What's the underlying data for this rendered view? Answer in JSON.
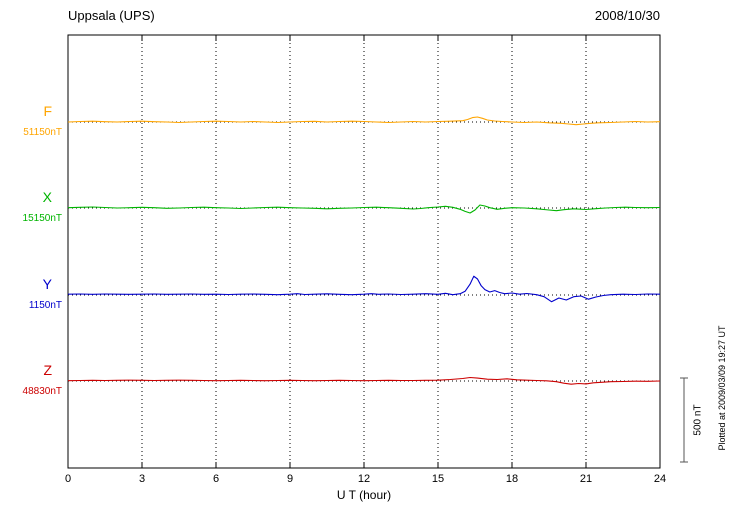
{
  "chart_data": {
    "type": "line",
    "station": "Uppsala (UPS)",
    "date": "2008/10/30",
    "xlabel": "U T (hour)",
    "x_range": [
      0,
      24
    ],
    "x_ticks": [
      0,
      3,
      6,
      9,
      12,
      15,
      18,
      21,
      24
    ],
    "y_unit": "nT",
    "grid": "dotted vertical every 3 hours, dotted horizontal baseline per trace",
    "scale_bar": {
      "label": "500 nT",
      "nT": 500
    },
    "plotted_note": "Plotted at 2009/03/09 19:27 UT",
    "series": [
      {
        "name": "F",
        "baseline_label": "51150nT",
        "baseline_nT": 51150,
        "color": "#ffa500",
        "points": [
          [
            0,
            0
          ],
          [
            0.5,
            3
          ],
          [
            1,
            5
          ],
          [
            1.5,
            2
          ],
          [
            2,
            0
          ],
          [
            2.5,
            3
          ],
          [
            3,
            5
          ],
          [
            3.5,
            2
          ],
          [
            4,
            0
          ],
          [
            4.5,
            -3
          ],
          [
            5,
            0
          ],
          [
            5.5,
            3
          ],
          [
            6,
            5
          ],
          [
            6.5,
            3
          ],
          [
            7,
            0
          ],
          [
            7.5,
            3
          ],
          [
            8,
            0
          ],
          [
            8.5,
            -3
          ],
          [
            9,
            0
          ],
          [
            9.5,
            3
          ],
          [
            10,
            4
          ],
          [
            10.5,
            0
          ],
          [
            11,
            3
          ],
          [
            11.5,
            5
          ],
          [
            12,
            3
          ],
          [
            12.5,
            0
          ],
          [
            13,
            -3
          ],
          [
            13.5,
            0
          ],
          [
            14,
            3
          ],
          [
            14.5,
            0
          ],
          [
            15,
            3
          ],
          [
            15.5,
            5
          ],
          [
            16,
            8
          ],
          [
            16.2,
            15
          ],
          [
            16.4,
            26
          ],
          [
            16.6,
            30
          ],
          [
            16.8,
            22
          ],
          [
            17,
            12
          ],
          [
            17.3,
            6
          ],
          [
            17.6,
            3
          ],
          [
            18,
            0
          ],
          [
            18.5,
            -3
          ],
          [
            19,
            0
          ],
          [
            19.5,
            -5
          ],
          [
            20,
            -8
          ],
          [
            20.3,
            -12
          ],
          [
            20.6,
            -16
          ],
          [
            20.9,
            -12
          ],
          [
            21.2,
            -8
          ],
          [
            21.5,
            -5
          ],
          [
            22,
            -3
          ],
          [
            22.5,
            0
          ],
          [
            23,
            3
          ],
          [
            23.5,
            0
          ],
          [
            24,
            2
          ]
        ]
      },
      {
        "name": "X",
        "baseline_label": "15150nT",
        "baseline_nT": 15150,
        "color": "#00b400",
        "points": [
          [
            0,
            2
          ],
          [
            0.5,
            4
          ],
          [
            1,
            6
          ],
          [
            1.5,
            3
          ],
          [
            2,
            0
          ],
          [
            2.5,
            2
          ],
          [
            3,
            4
          ],
          [
            3.5,
            2
          ],
          [
            4,
            -2
          ],
          [
            4.5,
            0
          ],
          [
            5,
            3
          ],
          [
            5.5,
            5
          ],
          [
            6,
            2
          ],
          [
            6.5,
            0
          ],
          [
            7,
            -3
          ],
          [
            7.5,
            0
          ],
          [
            8,
            3
          ],
          [
            8.5,
            5
          ],
          [
            9,
            2
          ],
          [
            9.5,
            0
          ],
          [
            10,
            -2
          ],
          [
            10.5,
            -5
          ],
          [
            11,
            -2
          ],
          [
            11.5,
            0
          ],
          [
            12,
            3
          ],
          [
            12.5,
            5
          ],
          [
            13,
            2
          ],
          [
            13.5,
            -2
          ],
          [
            14,
            -6
          ],
          [
            14.3,
            -3
          ],
          [
            14.6,
            2
          ],
          [
            15,
            6
          ],
          [
            15.3,
            10
          ],
          [
            15.6,
            4
          ],
          [
            15.9,
            -8
          ],
          [
            16.1,
            -20
          ],
          [
            16.3,
            -30
          ],
          [
            16.5,
            -12
          ],
          [
            16.7,
            18
          ],
          [
            16.9,
            12
          ],
          [
            17.1,
            2
          ],
          [
            17.4,
            -8
          ],
          [
            17.7,
            -2
          ],
          [
            18,
            2
          ],
          [
            18.5,
            0
          ],
          [
            19,
            -5
          ],
          [
            19.5,
            -12
          ],
          [
            19.8,
            -16
          ],
          [
            20.1,
            -10
          ],
          [
            20.5,
            -5
          ],
          [
            21,
            -9
          ],
          [
            21.4,
            -4
          ],
          [
            21.8,
            0
          ],
          [
            22.2,
            3
          ],
          [
            22.6,
            5
          ],
          [
            23,
            3
          ],
          [
            23.5,
            2
          ],
          [
            24,
            3
          ]
        ]
      },
      {
        "name": "Y",
        "baseline_label": "1150nT",
        "baseline_nT": 1150,
        "color": "#0000cc",
        "points": [
          [
            0,
            5
          ],
          [
            0.5,
            6
          ],
          [
            1,
            4
          ],
          [
            1.5,
            6
          ],
          [
            2,
            5
          ],
          [
            2.5,
            4
          ],
          [
            3,
            5
          ],
          [
            3.5,
            6
          ],
          [
            4,
            4
          ],
          [
            4.5,
            5
          ],
          [
            5,
            6
          ],
          [
            5.5,
            4
          ],
          [
            6,
            5
          ],
          [
            6.5,
            3
          ],
          [
            7,
            5
          ],
          [
            7.5,
            6
          ],
          [
            8,
            4
          ],
          [
            8.5,
            2
          ],
          [
            9,
            5
          ],
          [
            9.3,
            8
          ],
          [
            9.6,
            3
          ],
          [
            10,
            5
          ],
          [
            10.5,
            7
          ],
          [
            11,
            4
          ],
          [
            11.5,
            2
          ],
          [
            12,
            5
          ],
          [
            12.3,
            8
          ],
          [
            12.6,
            4
          ],
          [
            13,
            6
          ],
          [
            13.5,
            3
          ],
          [
            14,
            5
          ],
          [
            14.5,
            8
          ],
          [
            15,
            4
          ],
          [
            15.3,
            10
          ],
          [
            15.6,
            2
          ],
          [
            15.9,
            8
          ],
          [
            16.1,
            22
          ],
          [
            16.3,
            65
          ],
          [
            16.45,
            112
          ],
          [
            16.6,
            95
          ],
          [
            16.75,
            55
          ],
          [
            16.9,
            32
          ],
          [
            17.1,
            18
          ],
          [
            17.3,
            26
          ],
          [
            17.5,
            15
          ],
          [
            17.7,
            8
          ],
          [
            18,
            12
          ],
          [
            18.3,
            5
          ],
          [
            18.6,
            9
          ],
          [
            19,
            2
          ],
          [
            19.3,
            -10
          ],
          [
            19.6,
            -40
          ],
          [
            19.9,
            -18
          ],
          [
            20.2,
            -30
          ],
          [
            20.5,
            -10
          ],
          [
            20.8,
            -6
          ],
          [
            21.1,
            -25
          ],
          [
            21.4,
            -12
          ],
          [
            21.7,
            -3
          ],
          [
            22,
            2
          ],
          [
            22.5,
            5
          ],
          [
            23,
            3
          ],
          [
            23.5,
            6
          ],
          [
            24,
            5
          ]
        ]
      },
      {
        "name": "Z",
        "baseline_label": "48830nT",
        "baseline_nT": 48830,
        "color": "#cc0000",
        "points": [
          [
            0,
            2
          ],
          [
            0.5,
            3
          ],
          [
            1,
            4
          ],
          [
            1.5,
            3
          ],
          [
            2,
            4
          ],
          [
            2.5,
            5
          ],
          [
            3,
            4
          ],
          [
            3.5,
            3
          ],
          [
            4,
            4
          ],
          [
            4.5,
            5
          ],
          [
            5,
            4
          ],
          [
            5.5,
            3
          ],
          [
            6,
            2
          ],
          [
            6.5,
            3
          ],
          [
            7,
            4
          ],
          [
            7.5,
            3
          ],
          [
            8,
            2
          ],
          [
            8.5,
            3
          ],
          [
            9,
            4
          ],
          [
            9.5,
            3
          ],
          [
            10,
            2
          ],
          [
            10.5,
            3
          ],
          [
            11,
            4
          ],
          [
            11.5,
            3
          ],
          [
            12,
            2
          ],
          [
            12.5,
            3
          ],
          [
            13,
            4
          ],
          [
            13.5,
            3
          ],
          [
            14,
            3
          ],
          [
            14.5,
            4
          ],
          [
            15,
            5
          ],
          [
            15.5,
            9
          ],
          [
            16,
            15
          ],
          [
            16.3,
            21
          ],
          [
            16.6,
            17
          ],
          [
            17,
            11
          ],
          [
            17.4,
            9
          ],
          [
            17.8,
            13
          ],
          [
            18.2,
            7
          ],
          [
            18.6,
            5
          ],
          [
            19,
            3
          ],
          [
            19.4,
            1
          ],
          [
            19.8,
            -4
          ],
          [
            20.1,
            -13
          ],
          [
            20.4,
            -19
          ],
          [
            20.7,
            -15
          ],
          [
            21,
            -17
          ],
          [
            21.3,
            -11
          ],
          [
            21.7,
            -7
          ],
          [
            22,
            -4
          ],
          [
            22.5,
            -3
          ],
          [
            23,
            -1
          ],
          [
            23.5,
            -2
          ],
          [
            24,
            0
          ]
        ]
      }
    ]
  }
}
